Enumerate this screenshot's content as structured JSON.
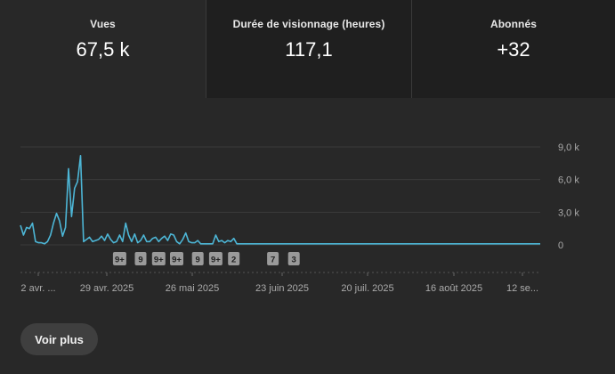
{
  "stats": [
    {
      "label": "Vues",
      "value": "67,5 k"
    },
    {
      "label": "Durée de visionnage (heures)",
      "value": "117,1"
    },
    {
      "label": "Abonnés",
      "value": "+32"
    }
  ],
  "chart_data": {
    "type": "line",
    "color": "#4db6d6",
    "yticks": [
      "9,0 k",
      "6,0 k",
      "3,0 k",
      "0"
    ],
    "ylim": [
      0,
      9000
    ],
    "xlabels": [
      "2 avr. ...",
      "29 avr. 2025",
      "26 mai 2025",
      "23 juin 2025",
      "20 juil. 2025",
      "16 août 2025",
      "12 se..."
    ],
    "x_start": "2025-04-02",
    "x_step_days": 1,
    "values": [
      1800,
      900,
      1600,
      1500,
      2000,
      300,
      200,
      200,
      100,
      300,
      900,
      2000,
      2900,
      2200,
      800,
      1600,
      7000,
      2600,
      5200,
      5800,
      8200,
      300,
      500,
      700,
      300,
      400,
      500,
      800,
      400,
      1000,
      500,
      200,
      300,
      900,
      300,
      2000,
      900,
      300,
      1000,
      200,
      400,
      900,
      300,
      300,
      600,
      700,
      300,
      600,
      800,
      400,
      1000,
      900,
      300,
      100,
      500,
      1100,
      300,
      200,
      200,
      400,
      100,
      100,
      100,
      100,
      100,
      900,
      300,
      400,
      200,
      400,
      300,
      600,
      100,
      100,
      100,
      100,
      100,
      100,
      100,
      100,
      100,
      100,
      100,
      100,
      100,
      100,
      100,
      100,
      100,
      100,
      100,
      100,
      100,
      100,
      100,
      100,
      100,
      100,
      100,
      100,
      100,
      100,
      100,
      100,
      100,
      100,
      100,
      100,
      100,
      100,
      100,
      100,
      100,
      100,
      100,
      100,
      100,
      100,
      100,
      100,
      100,
      100,
      100,
      100,
      100,
      100,
      100,
      100,
      100,
      100,
      100,
      100,
      100,
      100,
      100,
      100,
      100,
      100,
      100,
      100,
      100,
      100,
      100,
      100,
      100,
      100,
      100,
      100,
      100,
      100,
      100,
      100,
      100,
      100,
      100,
      100,
      100,
      100,
      100,
      100,
      100,
      100,
      100,
      100,
      100,
      100,
      100,
      100,
      100,
      100,
      100,
      100,
      100,
      100
    ],
    "badges": [
      {
        "label": "9+",
        "day": 33
      },
      {
        "label": "9",
        "day": 40
      },
      {
        "label": "9+",
        "day": 46
      },
      {
        "label": "9+",
        "day": 52
      },
      {
        "label": "9",
        "day": 59
      },
      {
        "label": "9+",
        "day": 65
      },
      {
        "label": "2",
        "day": 71
      },
      {
        "label": "7",
        "day": 84
      },
      {
        "label": "3",
        "day": 91
      }
    ]
  },
  "footer": {
    "more_label": "Voir plus"
  }
}
